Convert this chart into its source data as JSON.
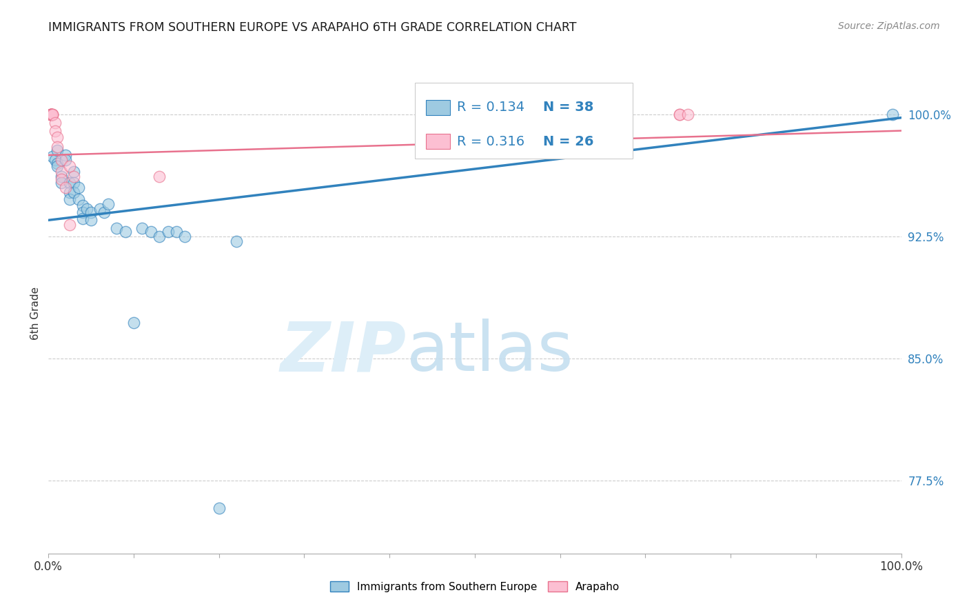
{
  "title": "IMMIGRANTS FROM SOUTHERN EUROPE VS ARAPAHO 6TH GRADE CORRELATION CHART",
  "source": "Source: ZipAtlas.com",
  "ylabel": "6th Grade",
  "y_tick_labels": [
    "77.5%",
    "85.0%",
    "92.5%",
    "100.0%"
  ],
  "y_tick_values": [
    0.775,
    0.85,
    0.925,
    1.0
  ],
  "legend_label1": "Immigrants from Southern Europe",
  "legend_label2": "Arapaho",
  "R_blue": "0.134",
  "N_blue": "38",
  "R_pink": "0.316",
  "N_pink": "26",
  "blue_color": "#9ecae1",
  "pink_color": "#fcbfd2",
  "blue_line_color": "#3182bd",
  "pink_line_color": "#e8718d",
  "blue_scatter_x": [
    0.005,
    0.008,
    0.01,
    0.01,
    0.01,
    0.015,
    0.015,
    0.02,
    0.02,
    0.025,
    0.025,
    0.025,
    0.03,
    0.03,
    0.03,
    0.035,
    0.035,
    0.04,
    0.04,
    0.04,
    0.045,
    0.05,
    0.05,
    0.06,
    0.065,
    0.07,
    0.08,
    0.09,
    0.1,
    0.11,
    0.12,
    0.13,
    0.14,
    0.15,
    0.16,
    0.2,
    0.22,
    0.99
  ],
  "blue_scatter_y": [
    0.974,
    0.972,
    0.978,
    0.97,
    0.968,
    0.962,
    0.958,
    0.975,
    0.972,
    0.958,
    0.952,
    0.948,
    0.965,
    0.958,
    0.952,
    0.955,
    0.948,
    0.944,
    0.94,
    0.936,
    0.942,
    0.94,
    0.935,
    0.942,
    0.94,
    0.945,
    0.93,
    0.928,
    0.872,
    0.93,
    0.928,
    0.925,
    0.928,
    0.928,
    0.925,
    0.758,
    0.922,
    1.0
  ],
  "pink_scatter_x": [
    0.003,
    0.003,
    0.003,
    0.003,
    0.003,
    0.003,
    0.003,
    0.005,
    0.005,
    0.005,
    0.008,
    0.008,
    0.01,
    0.01,
    0.015,
    0.015,
    0.015,
    0.02,
    0.025,
    0.025,
    0.03,
    0.13,
    0.55,
    0.74,
    0.74,
    0.75
  ],
  "pink_scatter_y": [
    1.0,
    1.0,
    1.0,
    1.0,
    1.0,
    1.0,
    1.0,
    1.0,
    1.0,
    1.0,
    0.995,
    0.99,
    0.986,
    0.98,
    0.972,
    0.965,
    0.96,
    0.955,
    0.968,
    0.932,
    0.962,
    0.962,
    1.0,
    1.0,
    1.0,
    1.0
  ],
  "blue_line_x": [
    0.0,
    1.0
  ],
  "blue_line_y": [
    0.935,
    0.998
  ],
  "pink_line_x": [
    0.0,
    1.0
  ],
  "pink_line_y": [
    0.975,
    0.99
  ],
  "ylim": [
    0.73,
    1.025
  ],
  "xlim": [
    0.0,
    1.0
  ]
}
